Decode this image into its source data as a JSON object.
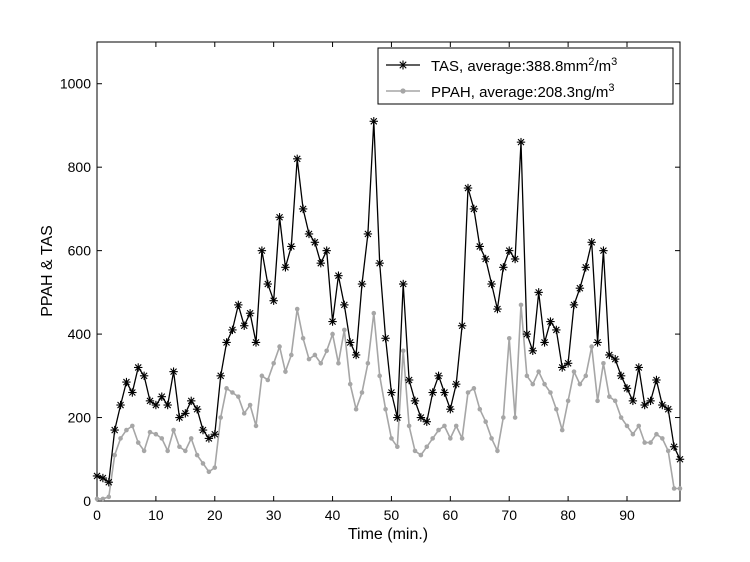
{
  "chart_data": {
    "type": "line",
    "title": "",
    "xlabel": "Time (min.)",
    "ylabel": "PPAH & TAS",
    "xlim": [
      0,
      99
    ],
    "ylim": [
      0,
      1100
    ],
    "xticks": [
      0,
      10,
      20,
      30,
      40,
      50,
      60,
      70,
      80,
      90
    ],
    "yticks": [
      0,
      200,
      400,
      600,
      800,
      1000
    ],
    "grid": false,
    "legend_position": "top-right",
    "legend": [
      {
        "text": "TAS, average:388.8mm",
        "sup1": "2",
        "mid": "/m",
        "sup2": "3"
      },
      {
        "text": "PPAH, average:208.3ng/m",
        "sup1": "",
        "mid": "",
        "sup2": "3"
      }
    ],
    "series": [
      {
        "name": "TAS, average:388.8mm2/m3",
        "color": "#000000",
        "marker": "asterisk",
        "x": [
          0,
          1,
          2,
          3,
          4,
          5,
          6,
          7,
          8,
          9,
          10,
          11,
          12,
          13,
          14,
          15,
          16,
          17,
          18,
          19,
          20,
          21,
          22,
          23,
          24,
          25,
          26,
          27,
          28,
          29,
          30,
          31,
          32,
          33,
          34,
          35,
          36,
          37,
          38,
          39,
          40,
          41,
          42,
          43,
          44,
          45,
          46,
          47,
          48,
          49,
          50,
          51,
          52,
          53,
          54,
          55,
          56,
          57,
          58,
          59,
          60,
          61,
          62,
          63,
          64,
          65,
          66,
          67,
          68,
          69,
          70,
          71,
          72,
          73,
          74,
          75,
          76,
          77,
          78,
          79,
          80,
          81,
          82,
          83,
          84,
          85,
          86,
          87,
          88,
          89,
          90,
          91,
          92,
          93,
          94,
          95,
          96,
          97,
          98,
          99
        ],
        "values": [
          60,
          55,
          45,
          170,
          230,
          285,
          260,
          320,
          300,
          240,
          230,
          250,
          230,
          310,
          200,
          210,
          240,
          220,
          170,
          150,
          160,
          300,
          380,
          410,
          470,
          420,
          450,
          380,
          600,
          520,
          480,
          680,
          560,
          610,
          820,
          700,
          640,
          620,
          570,
          600,
          430,
          540,
          470,
          380,
          350,
          520,
          640,
          910,
          570,
          390,
          260,
          200,
          520,
          290,
          240,
          200,
          190,
          260,
          300,
          260,
          220,
          280,
          420,
          750,
          700,
          610,
          580,
          520,
          460,
          560,
          600,
          580,
          860,
          400,
          360,
          500,
          380,
          430,
          410,
          320,
          330,
          470,
          510,
          560,
          620,
          380,
          600,
          350,
          340,
          300,
          270,
          240,
          320,
          230,
          240,
          290,
          230,
          220,
          130,
          100
        ]
      },
      {
        "name": "PPAH, average:208.3ng/m3",
        "color": "#a6a6a6",
        "marker": "dot",
        "x": [
          0,
          1,
          2,
          3,
          4,
          5,
          6,
          7,
          8,
          9,
          10,
          11,
          12,
          13,
          14,
          15,
          16,
          17,
          18,
          19,
          20,
          21,
          22,
          23,
          24,
          25,
          26,
          27,
          28,
          29,
          30,
          31,
          32,
          33,
          34,
          35,
          36,
          37,
          38,
          39,
          40,
          41,
          42,
          43,
          44,
          45,
          46,
          47,
          48,
          49,
          50,
          51,
          52,
          53,
          54,
          55,
          56,
          57,
          58,
          59,
          60,
          61,
          62,
          63,
          64,
          65,
          66,
          67,
          68,
          69,
          70,
          71,
          72,
          73,
          74,
          75,
          76,
          77,
          78,
          79,
          80,
          81,
          82,
          83,
          84,
          85,
          86,
          87,
          88,
          89,
          90,
          91,
          92,
          93,
          94,
          95,
          96,
          97,
          98,
          99
        ],
        "values": [
          5,
          5,
          10,
          110,
          150,
          170,
          180,
          140,
          120,
          165,
          160,
          150,
          120,
          170,
          130,
          120,
          150,
          110,
          90,
          70,
          80,
          200,
          270,
          260,
          250,
          210,
          230,
          180,
          300,
          290,
          330,
          370,
          310,
          350,
          460,
          390,
          340,
          350,
          330,
          360,
          400,
          330,
          410,
          280,
          220,
          260,
          330,
          450,
          300,
          220,
          150,
          130,
          360,
          180,
          120,
          110,
          130,
          150,
          170,
          180,
          150,
          180,
          150,
          260,
          270,
          220,
          190,
          150,
          120,
          200,
          390,
          200,
          470,
          300,
          280,
          310,
          280,
          260,
          220,
          170,
          240,
          310,
          280,
          300,
          370,
          240,
          330,
          250,
          240,
          200,
          180,
          160,
          180,
          140,
          140,
          160,
          150,
          120,
          30,
          30
        ]
      }
    ]
  }
}
